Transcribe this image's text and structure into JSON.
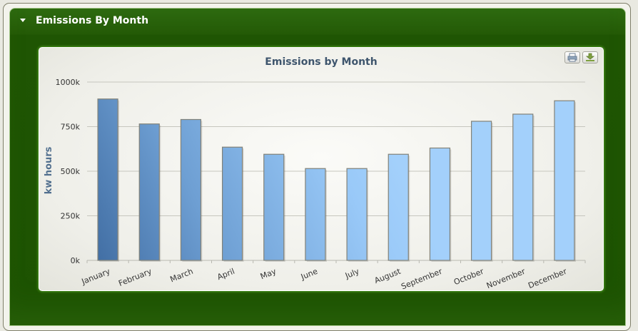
{
  "panel": {
    "title": "Emissions By Month"
  },
  "toolbar": {
    "print_icon": "printer-icon",
    "export_icon": "download-icon"
  },
  "colors": {
    "panel_green": "#245a06",
    "bar_light": "#99c9f8",
    "bar_dark": "#3a6597",
    "title_text": "#3e556d"
  },
  "chart_data": {
    "type": "bar",
    "title": "Emissions by Month",
    "xlabel": "",
    "ylabel": "kw hours",
    "categories": [
      "January",
      "February",
      "March",
      "April",
      "May",
      "June",
      "July",
      "August",
      "September",
      "October",
      "November",
      "December"
    ],
    "values": [
      905000,
      765000,
      790000,
      635000,
      595000,
      515000,
      515000,
      595000,
      630000,
      780000,
      820000,
      895000
    ],
    "ylim": [
      0,
      1000000
    ],
    "yticks": [
      "0k",
      "250k",
      "500k",
      "750k",
      "1000k"
    ],
    "grid": true,
    "legend": "none"
  }
}
